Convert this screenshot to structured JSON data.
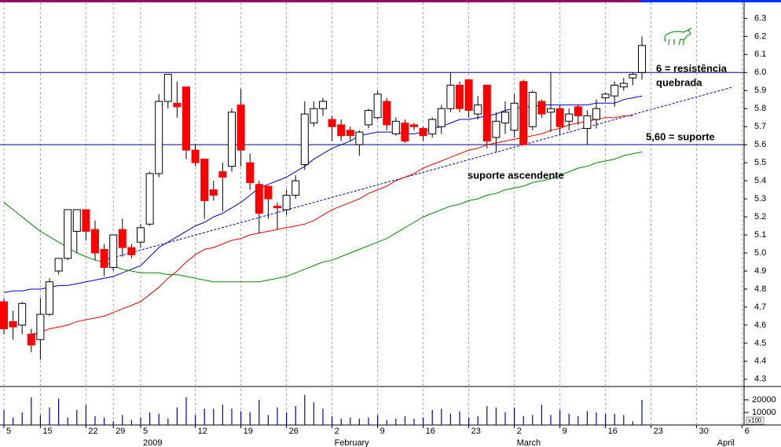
{
  "chart_data": {
    "type": "candlestick",
    "categories": [
      "5",
      null,
      null,
      null,
      "15",
      null,
      null,
      null,
      null,
      "22",
      null,
      null,
      "29",
      null,
      null,
      "5",
      null,
      null,
      null,
      null,
      null,
      "12",
      null,
      null,
      null,
      null,
      "19",
      null,
      null,
      null,
      null,
      "26",
      null,
      null,
      null,
      null,
      "2",
      null,
      null,
      null,
      null,
      "9",
      null,
      null,
      null,
      null,
      "16",
      null,
      null,
      null,
      null,
      "23",
      null,
      null,
      null,
      null,
      "2",
      null,
      null,
      null,
      null,
      "9",
      null,
      null,
      null,
      null,
      "16",
      null,
      null,
      null,
      null,
      "23",
      null,
      null,
      null,
      null,
      "30",
      null,
      null,
      null,
      null,
      "6"
    ],
    "months": [
      "2009",
      "February",
      "March",
      "April"
    ],
    "open": [
      4.73,
      4.62,
      4.6,
      4.55,
      4.52,
      4.66,
      4.9,
      4.97,
      5.12,
      5.24,
      5.13,
      5.02,
      4.92,
      5.13,
      5.03,
      5.06,
      5.16,
      5.44,
      5.84,
      5.83,
      5.92,
      5.57,
      5.52,
      5.35,
      5.45,
      5.48,
      5.82,
      5.5,
      5.38,
      5.37,
      5.26,
      5.24,
      5.32,
      5.49,
      5.72,
      5.8,
      5.74,
      5.71,
      5.68,
      5.6,
      5.71,
      5.75,
      5.84,
      5.66,
      5.72,
      5.71,
      5.69,
      5.66,
      5.7,
      5.8,
      5.93,
      5.96,
      5.77,
      5.93,
      5.64,
      5.72,
      5.68,
      5.95,
      5.7,
      5.84,
      5.78,
      5.8,
      5.73,
      5.81,
      5.69,
      5.74,
      5.86,
      5.87,
      5.92,
      5.97,
      6.0,
      null,
      null,
      null,
      null,
      null,
      null,
      null,
      null,
      null,
      null,
      null
    ],
    "high": [
      4.75,
      4.68,
      4.73,
      4.58,
      4.75,
      4.86,
      4.97,
      5.24,
      5.24,
      5.24,
      5.18,
      5.05,
      5.1,
      5.19,
      5.05,
      5.16,
      5.45,
      5.88,
      5.99,
      5.95,
      5.92,
      5.6,
      5.52,
      5.4,
      5.5,
      5.8,
      5.91,
      5.55,
      5.4,
      5.37,
      5.28,
      5.35,
      5.43,
      5.84,
      5.84,
      5.86,
      5.76,
      5.74,
      5.7,
      5.68,
      5.8,
      5.9,
      5.86,
      5.75,
      5.74,
      5.72,
      5.7,
      5.75,
      5.82,
      6.0,
      5.95,
      5.96,
      5.87,
      5.93,
      5.78,
      5.84,
      5.88,
      5.96,
      5.9,
      5.85,
      6.0,
      5.82,
      5.8,
      5.82,
      5.79,
      5.85,
      5.89,
      5.95,
      5.97,
      6.0,
      6.2,
      null,
      null,
      null,
      null,
      null,
      null,
      null,
      null,
      null,
      null,
      null
    ],
    "low": [
      4.55,
      4.52,
      4.55,
      4.45,
      4.41,
      4.65,
      4.88,
      4.96,
      5.0,
      5.07,
      4.96,
      4.87,
      4.9,
      4.98,
      4.97,
      5.03,
      5.15,
      5.42,
      5.8,
      5.75,
      5.52,
      5.48,
      5.19,
      5.29,
      5.23,
      5.45,
      5.48,
      5.35,
      5.11,
      5.19,
      5.13,
      5.21,
      5.3,
      5.46,
      5.7,
      5.76,
      5.62,
      5.62,
      5.62,
      5.54,
      5.69,
      5.74,
      5.68,
      5.65,
      5.61,
      5.68,
      5.62,
      5.64,
      5.66,
      5.78,
      5.78,
      5.75,
      5.74,
      5.58,
      5.56,
      5.66,
      5.64,
      5.6,
      5.68,
      5.75,
      5.67,
      5.66,
      5.68,
      5.71,
      5.6,
      5.69,
      5.84,
      5.81,
      5.9,
      5.93,
      5.96,
      null,
      null,
      null,
      null,
      null,
      null,
      null,
      null,
      null,
      null,
      null
    ],
    "close": [
      4.58,
      4.59,
      4.72,
      4.49,
      4.66,
      4.84,
      4.97,
      5.24,
      5.24,
      5.12,
      5.0,
      4.92,
      5.1,
      5.03,
      4.99,
      5.14,
      5.44,
      5.84,
      5.99,
      5.81,
      5.57,
      5.5,
      5.29,
      5.32,
      5.42,
      5.78,
      5.57,
      5.39,
      5.22,
      5.3,
      5.25,
      5.32,
      5.4,
      5.77,
      5.8,
      5.84,
      5.7,
      5.65,
      5.65,
      5.67,
      5.79,
      5.88,
      5.71,
      5.73,
      5.62,
      5.7,
      5.65,
      5.74,
      5.8,
      5.93,
      5.8,
      5.79,
      5.82,
      5.62,
      5.73,
      5.78,
      5.83,
      5.6,
      5.89,
      5.77,
      5.8,
      5.7,
      5.77,
      5.76,
      5.76,
      5.8,
      5.88,
      5.93,
      5.94,
      5.99,
      6.15,
      null,
      null,
      null,
      null,
      null,
      null,
      null,
      null,
      null,
      null,
      null
    ],
    "up_color": "#ffffff",
    "down_color": "#ff0000",
    "series": [
      {
        "color": "#0000cc",
        "values": [
          4.78,
          4.79,
          4.79,
          4.8,
          4.8,
          4.81,
          4.82,
          4.82,
          4.83,
          4.84,
          4.85,
          4.86,
          4.87,
          4.89,
          4.91,
          4.93,
          4.98,
          5.03,
          5.06,
          5.09,
          5.12,
          5.15,
          5.17,
          5.2,
          5.22,
          5.25,
          5.28,
          5.32,
          5.36,
          5.38,
          5.4,
          5.42,
          5.45,
          5.48,
          5.52,
          5.55,
          5.58,
          5.6,
          5.62,
          5.65,
          5.66,
          5.67,
          5.67,
          5.67,
          5.66,
          5.66,
          5.67,
          5.69,
          5.7,
          5.72,
          5.74,
          5.74,
          5.75,
          5.76,
          5.77,
          5.79,
          5.8,
          5.81,
          5.81,
          5.82,
          5.82,
          5.82,
          5.82,
          5.82,
          5.82,
          5.83,
          5.83,
          5.83,
          5.85,
          5.86,
          5.87,
          null,
          null,
          null,
          null,
          null,
          null,
          null,
          null,
          null,
          null,
          null
        ]
      },
      {
        "color": "#ee0000",
        "values": [
          null,
          null,
          null,
          4.55,
          4.56,
          4.58,
          4.59,
          4.6,
          4.62,
          4.63,
          4.64,
          4.65,
          4.67,
          4.69,
          4.71,
          4.73,
          4.77,
          4.81,
          4.86,
          4.9,
          4.95,
          4.99,
          5.02,
          5.03,
          5.05,
          5.07,
          5.08,
          5.1,
          5.11,
          5.12,
          5.13,
          5.14,
          5.15,
          5.16,
          5.18,
          5.21,
          5.24,
          5.26,
          5.28,
          5.3,
          5.33,
          5.35,
          5.37,
          5.4,
          5.42,
          5.44,
          5.47,
          5.49,
          5.51,
          5.53,
          5.55,
          5.57,
          5.58,
          5.6,
          5.61,
          5.62,
          5.63,
          5.64,
          5.65,
          5.66,
          5.68,
          5.69,
          5.71,
          5.72,
          5.73,
          5.74,
          5.75,
          5.75,
          5.76,
          5.76,
          null,
          null,
          null,
          null,
          null,
          null,
          null,
          null,
          null,
          null,
          null,
          null
        ]
      },
      {
        "color": "#008800",
        "values": [
          5.28,
          5.24,
          5.2,
          5.16,
          5.12,
          5.09,
          5.06,
          5.03,
          5.0,
          4.98,
          4.96,
          4.95,
          4.93,
          4.91,
          4.9,
          4.89,
          4.89,
          4.89,
          4.88,
          4.88,
          4.87,
          4.86,
          4.85,
          4.84,
          4.84,
          4.84,
          4.84,
          4.84,
          4.84,
          4.85,
          4.86,
          4.87,
          4.89,
          4.91,
          4.93,
          4.95,
          4.96,
          4.98,
          5.0,
          5.02,
          5.04,
          5.06,
          5.08,
          5.11,
          5.14,
          5.17,
          5.2,
          5.22,
          5.24,
          5.26,
          5.27,
          5.29,
          5.3,
          5.32,
          5.33,
          5.35,
          5.36,
          5.37,
          5.39,
          5.4,
          5.41,
          5.43,
          5.45,
          5.47,
          5.48,
          5.5,
          5.51,
          5.52,
          5.54,
          5.55,
          5.56,
          null,
          null,
          null,
          null,
          null,
          null,
          null,
          null,
          null,
          null,
          null
        ]
      }
    ],
    "volume": [
      12000,
      6000,
      10000,
      22000,
      8000,
      14000,
      21000,
      6000,
      12000,
      16000,
      7000,
      6000,
      3000,
      8000,
      4000,
      6000,
      10000,
      9000,
      5000,
      14000,
      22000,
      8000,
      13000,
      13000,
      16000,
      13000,
      11000,
      10000,
      20000,
      8000,
      14000,
      10000,
      15000,
      24000,
      18000,
      13000,
      7000,
      5000,
      6000,
      5000,
      6000,
      8000,
      4000,
      5000,
      7000,
      5000,
      6000,
      12000,
      13000,
      9000,
      11000,
      6000,
      7000,
      15000,
      14000,
      10000,
      14000,
      7000,
      8000,
      16000,
      8000,
      12000,
      9000,
      7000,
      11000,
      10000,
      9000,
      9000,
      8000,
      3000,
      20000,
      null,
      null,
      null,
      null,
      null,
      null,
      null,
      null,
      null,
      null,
      null
    ],
    "volume_color": "#0000cc",
    "volume_ylim": [
      0,
      30000
    ],
    "volume_yticks": [
      10000,
      20000
    ],
    "volume_unit": "x100",
    "ylim": [
      4.26,
      6.38
    ],
    "yticks": [
      4.3,
      4.4,
      4.5,
      4.6,
      4.7,
      4.8,
      4.9,
      {
        "value": 5,
        "label": "5.0"
      },
      5.1,
      5.2,
      5.3,
      5.4,
      5.5,
      5.6,
      5.7,
      5.8,
      5.9,
      {
        "value": 6,
        "label": "6.0"
      },
      6.1,
      6.2,
      6.3
    ],
    "hlines": [
      6,
      5.6
    ],
    "hline_color": "#000099",
    "trendline": {
      "x": [
        11,
        80
      ],
      "y": [
        4.96,
        5.92
      ],
      "color": "#0000cc"
    },
    "annotations": [
      "6 = resistência",
      "quebrada",
      "5,60 = suporte",
      "suporte ascendente"
    ],
    "grid": true
  }
}
